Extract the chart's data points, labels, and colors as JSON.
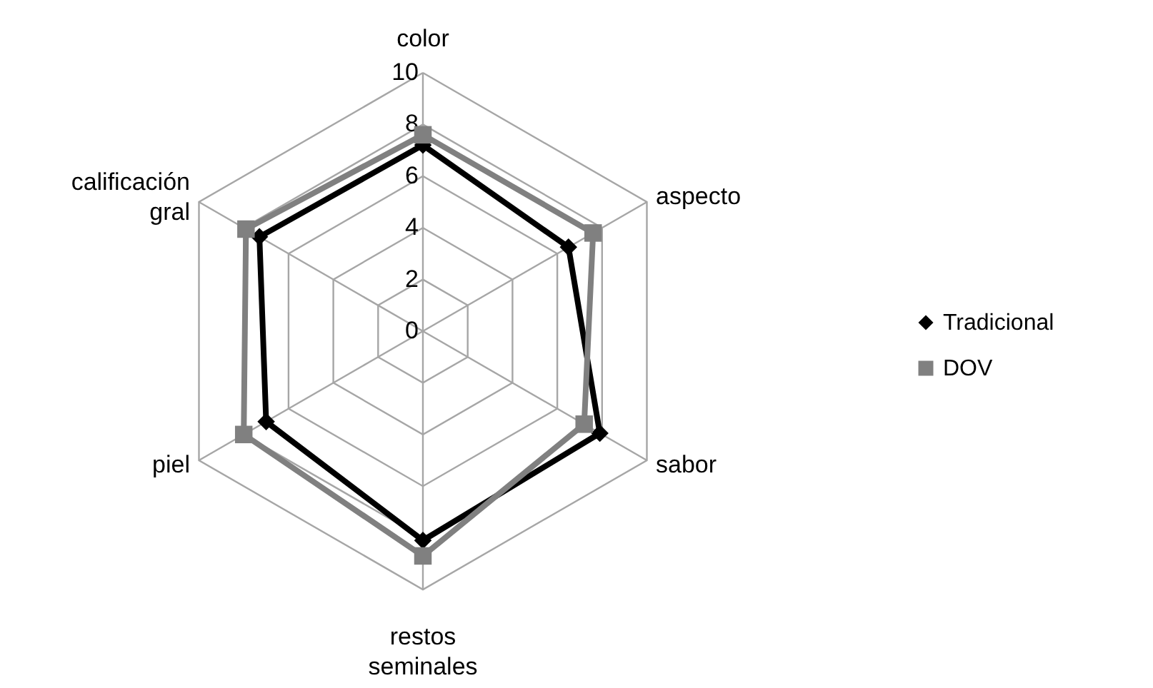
{
  "chart_data": {
    "type": "radar",
    "categories": [
      "color",
      "aspecto",
      "sabor",
      "restos seminales",
      "piel",
      "calificación gral"
    ],
    "ylim": [
      0,
      10
    ],
    "yticks": [
      0,
      2,
      4,
      6,
      8,
      10
    ],
    "grid": true,
    "legend": "right",
    "line_style": "solid",
    "series": [
      {
        "name": "Tradicional",
        "color": "#000000",
        "marker": "diamond",
        "values": [
          7.2,
          6.5,
          7.9,
          8.1,
          7.0,
          7.3
        ]
      },
      {
        "name": "DOV",
        "color": "#808080",
        "marker": "square",
        "values": [
          7.6,
          7.6,
          7.2,
          8.7,
          8.0,
          7.9
        ]
      }
    ]
  }
}
